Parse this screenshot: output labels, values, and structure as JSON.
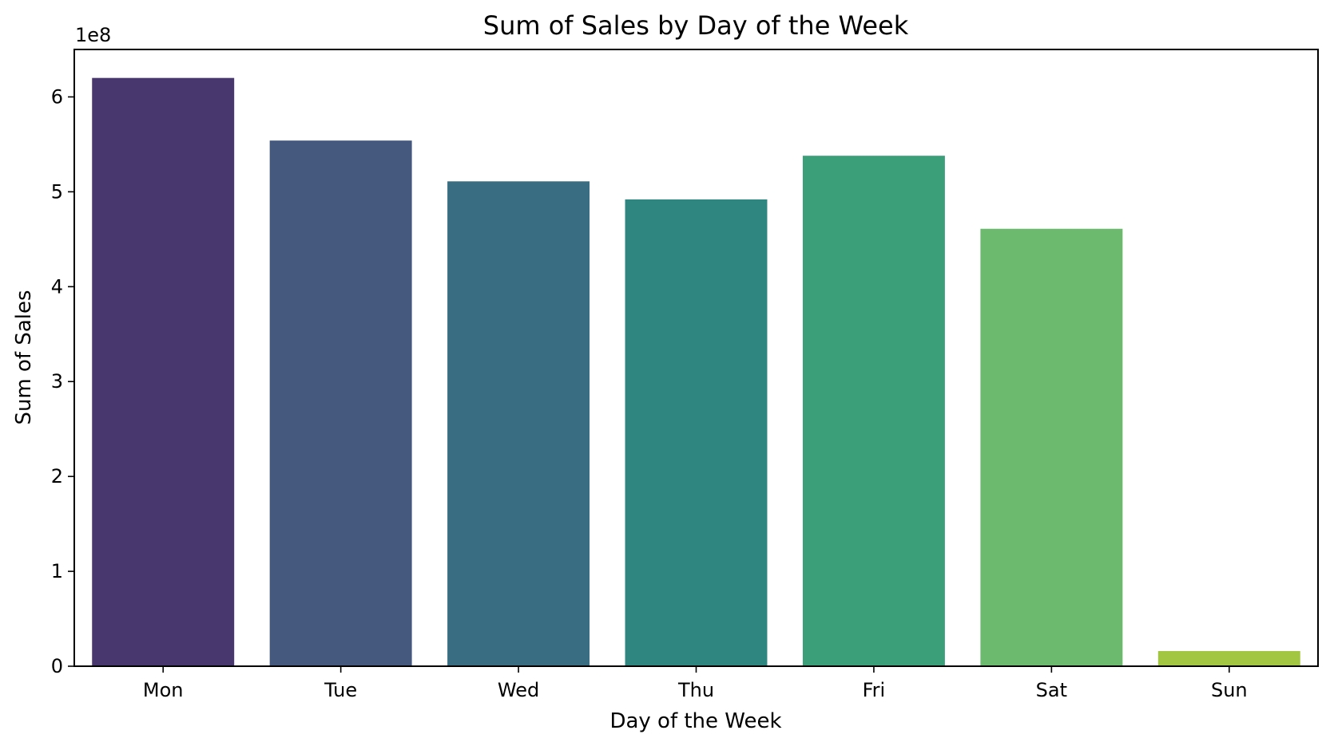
{
  "chart_data": {
    "type": "bar",
    "title": "Sum of Sales by Day of the Week",
    "xlabel": "Day of the Week",
    "ylabel": "Sum of Sales",
    "y_offset_label": "1e8",
    "categories": [
      "Mon",
      "Tue",
      "Wed",
      "Thu",
      "Fri",
      "Sat",
      "Sun"
    ],
    "values": [
      620000000,
      554000000,
      511000000,
      492000000,
      538000000,
      461000000,
      16000000
    ],
    "colors": [
      "#48366f",
      "#45587e",
      "#396d81",
      "#2f8580",
      "#3b9f7a",
      "#6bba6d",
      "#a2c642"
    ],
    "ylim": [
      0,
      650000000
    ],
    "yticks": [
      0,
      100000000,
      200000000,
      300000000,
      400000000,
      500000000,
      600000000
    ],
    "ytick_labels": [
      "0",
      "1",
      "2",
      "3",
      "4",
      "5",
      "6"
    ],
    "grid": false,
    "legend": "none"
  }
}
